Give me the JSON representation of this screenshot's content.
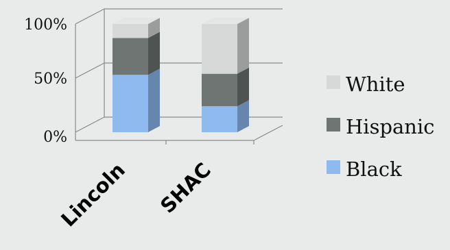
{
  "chart_data": {
    "type": "bar",
    "stacked": true,
    "three_d": true,
    "categories": [
      "Lincoln",
      "SHAC"
    ],
    "series": [
      {
        "name": "Black",
        "values": [
          53,
          24
        ],
        "color": "#8fbaf0"
      },
      {
        "name": "Hispanic",
        "values": [
          34,
          30
        ],
        "color": "#6e7572"
      },
      {
        "name": "White",
        "values": [
          13,
          46
        ],
        "color": "#d7d8d8"
      }
    ],
    "y_ticks": [
      "0%",
      "50%",
      "100%"
    ],
    "ylim": [
      0,
      100
    ],
    "legend_position": "right",
    "grid": true
  }
}
